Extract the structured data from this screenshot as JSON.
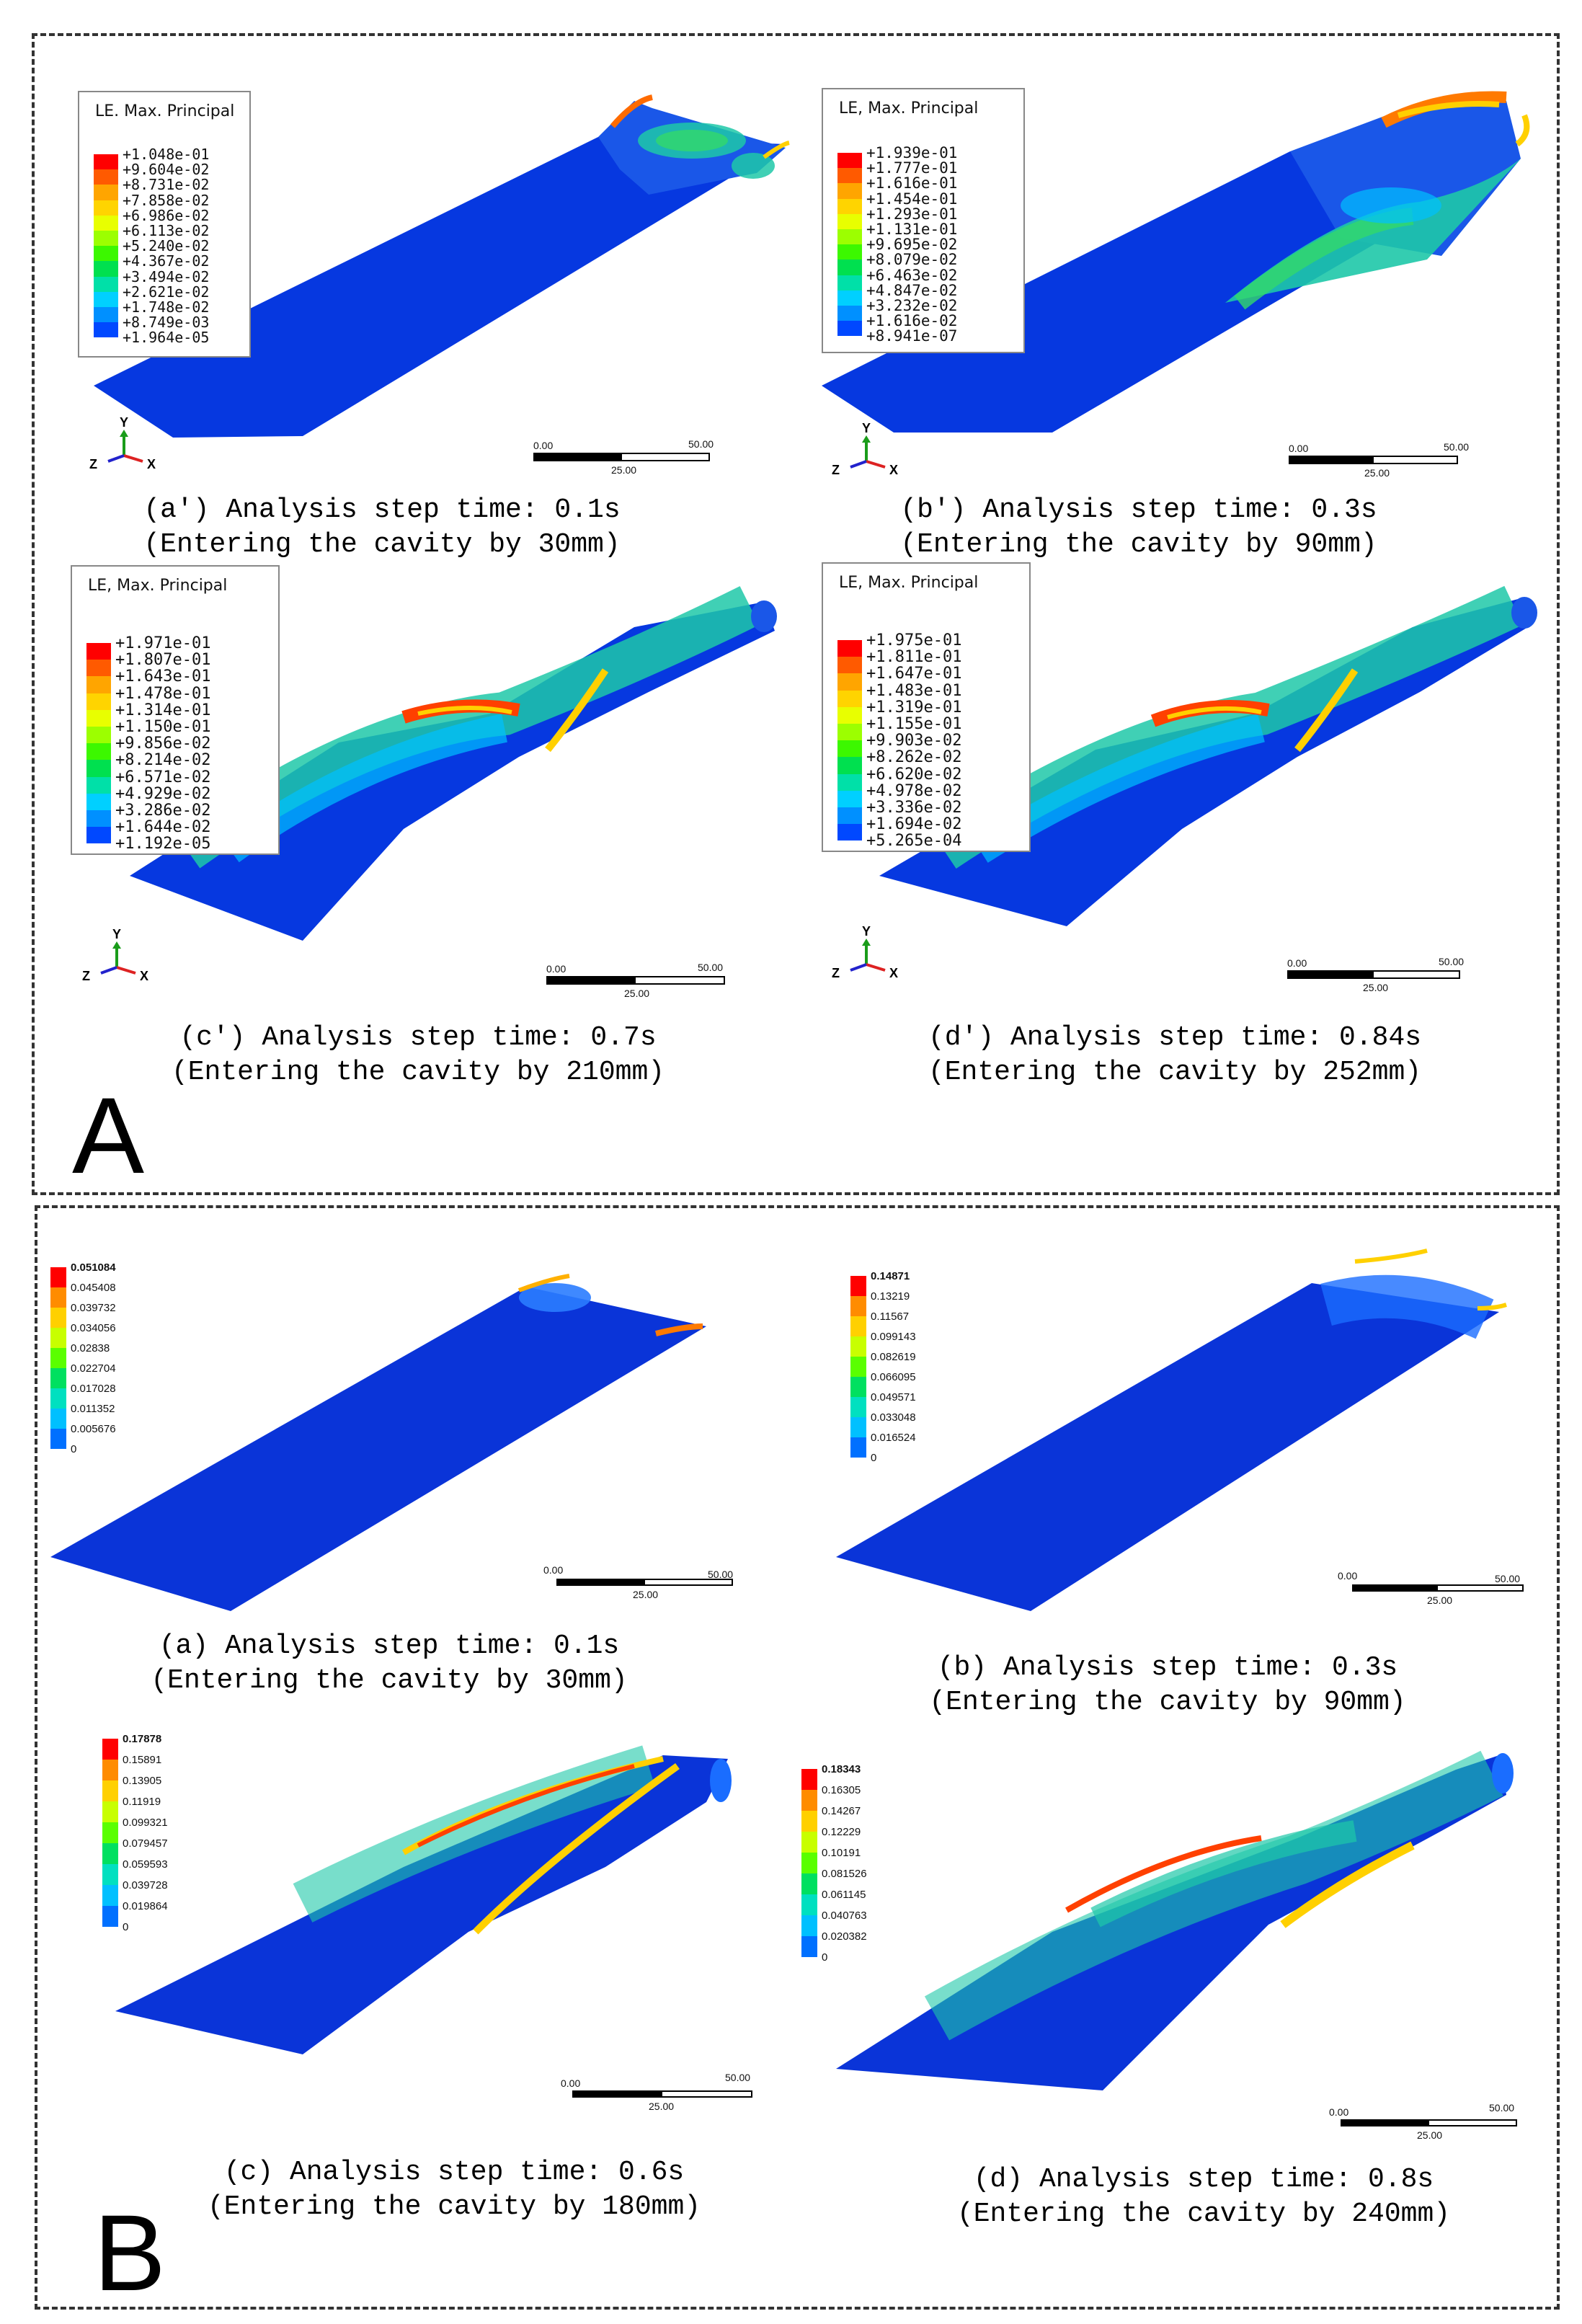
{
  "panels": [
    {
      "letter": "A"
    },
    {
      "letter": "B"
    }
  ],
  "colors": {
    "ramp13": [
      "#ff0000",
      "#ff5a00",
      "#ffa500",
      "#ffd400",
      "#e8ff00",
      "#9cff00",
      "#3cf800",
      "#00e04f",
      "#00e0a8",
      "#00d0ff",
      "#0090ff",
      "#0048ff",
      "#0000ff"
    ],
    "ramp10": [
      "#ff0000",
      "#ff8c00",
      "#ffd000",
      "#c8ff00",
      "#5aff00",
      "#00e060",
      "#00e0c0",
      "#00c0ff",
      "#0070ff",
      "#0000ff"
    ]
  },
  "panelA": {
    "legend_title": "LE, Max. Principal",
    "legend_title_a": "LE. Max. Principal",
    "subs": [
      {
        "id": "a_prime",
        "caption1": "(a') Analysis step time: 0.1s",
        "caption2": "(Entering the cavity by 30mm)",
        "legend": [
          "+1.048e-01",
          "+9.604e-02",
          "+8.731e-02",
          "+7.858e-02",
          "+6.986e-02",
          "+6.113e-02",
          "+5.240e-02",
          "+4.367e-02",
          "+3.494e-02",
          "+2.621e-02",
          "+1.748e-02",
          "+8.749e-03",
          "+1.964e-05"
        ]
      },
      {
        "id": "b_prime",
        "caption1": "(b') Analysis step time: 0.3s",
        "caption2": "(Entering the cavity by 90mm)",
        "legend": [
          "+1.939e-01",
          "+1.777e-01",
          "+1.616e-01",
          "+1.454e-01",
          "+1.293e-01",
          "+1.131e-01",
          "+9.695e-02",
          "+8.079e-02",
          "+6.463e-02",
          "+4.847e-02",
          "+3.232e-02",
          "+1.616e-02",
          "+8.941e-07"
        ]
      },
      {
        "id": "c_prime",
        "caption1": "(c') Analysis step time: 0.7s",
        "caption2": "(Entering the cavity by 210mm)",
        "legend": [
          "+1.971e-01",
          "+1.807e-01",
          "+1.643e-01",
          "+1.478e-01",
          "+1.314e-01",
          "+1.150e-01",
          "+9.856e-02",
          "+8.214e-02",
          "+6.571e-02",
          "+4.929e-02",
          "+3.286e-02",
          "+1.644e-02",
          "+1.192e-05"
        ]
      },
      {
        "id": "d_prime",
        "caption1": "(d') Analysis step time: 0.84s",
        "caption2": "(Entering the cavity by 252mm)",
        "legend": [
          "+1.975e-01",
          "+1.811e-01",
          "+1.647e-01",
          "+1.483e-01",
          "+1.319e-01",
          "+1.155e-01",
          "+9.903e-02",
          "+8.262e-02",
          "+6.620e-02",
          "+4.978e-02",
          "+3.336e-02",
          "+1.694e-02",
          "+5.265e-04"
        ]
      }
    ],
    "scale": {
      "left": "0.00",
      "mid": "25.00",
      "right": "50.00"
    },
    "axes": {
      "y": "Y",
      "z": "Z",
      "x": "X"
    }
  },
  "panelB": {
    "subs": [
      {
        "id": "a",
        "caption1": "(a) Analysis step time: 0.1s",
        "caption2": "(Entering the cavity by 30mm)",
        "legend": [
          "0.051084",
          "0.045408",
          "0.039732",
          "0.034056",
          "0.02838",
          "0.022704",
          "0.017028",
          "0.011352",
          "0.005676",
          "0"
        ]
      },
      {
        "id": "b",
        "caption1": "(b) Analysis step time: 0.3s",
        "caption2": "(Entering the cavity by 90mm)",
        "legend": [
          "0.14871",
          "0.13219",
          "0.11567",
          "0.099143",
          "0.082619",
          "0.066095",
          "0.049571",
          "0.033048",
          "0.016524",
          "0"
        ]
      },
      {
        "id": "c",
        "caption1": "(c) Analysis step time: 0.6s",
        "caption2": "(Entering the cavity by 180mm)",
        "legend": [
          "0.17878",
          "0.15891",
          "0.13905",
          "0.11919",
          "0.099321",
          "0.079457",
          "0.059593",
          "0.039728",
          "0.019864",
          "0"
        ]
      },
      {
        "id": "d",
        "caption1": "(d) Analysis step time: 0.8s",
        "caption2": "(Entering the cavity by 240mm)",
        "legend": [
          "0.18343",
          "0.16305",
          "0.14267",
          "0.12229",
          "0.10191",
          "0.081526",
          "0.061145",
          "0.040763",
          "0.020382",
          "0"
        ]
      }
    ],
    "scale": {
      "left": "0.00",
      "mid": "25.00",
      "right": "50.00"
    }
  }
}
